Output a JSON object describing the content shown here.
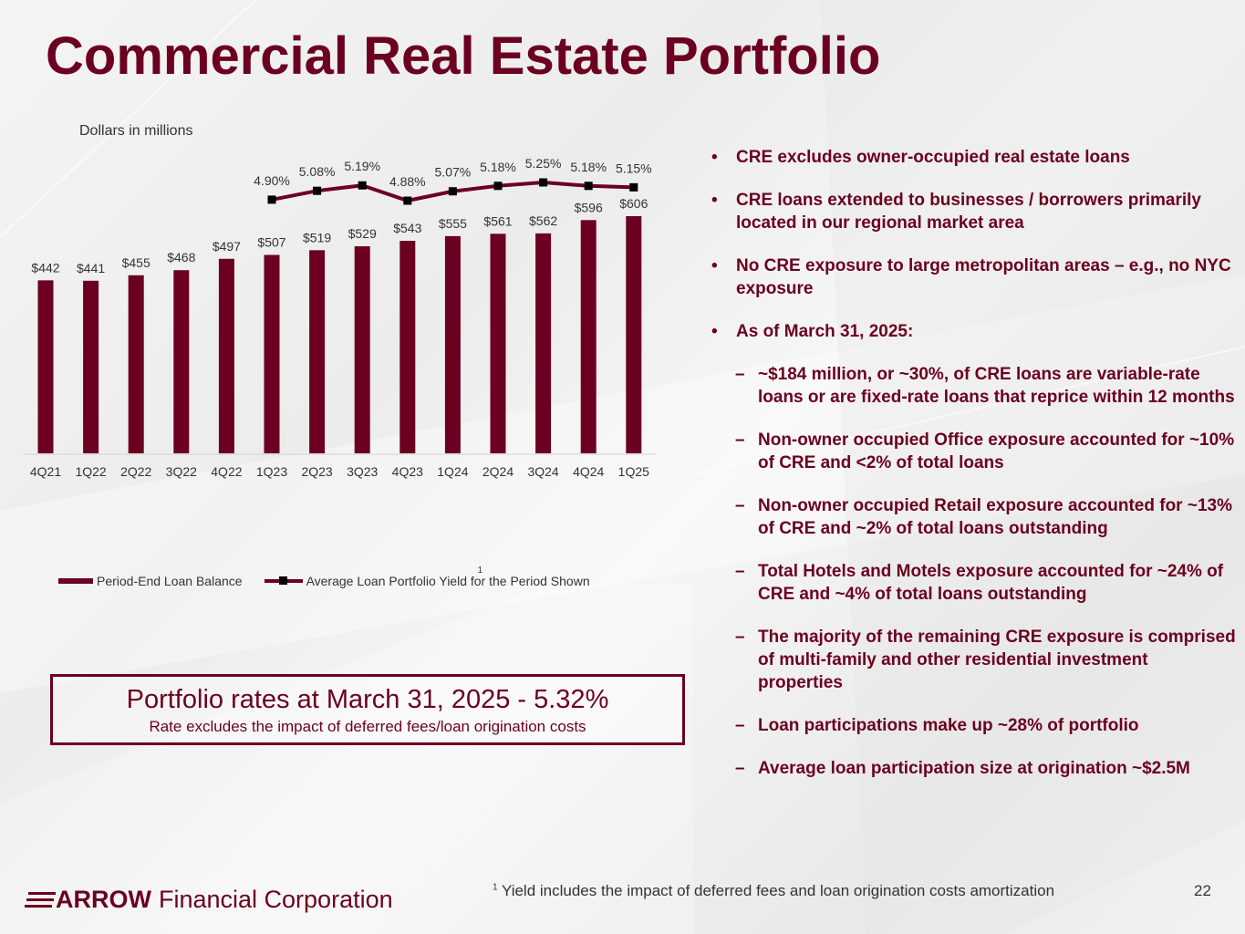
{
  "title": "Commercial Real Estate Portfolio",
  "chart_subtitle": "Dollars in millions",
  "chart_data": {
    "type": "bar",
    "categories": [
      "4Q21",
      "1Q22",
      "2Q22",
      "3Q22",
      "4Q22",
      "1Q23",
      "2Q23",
      "3Q23",
      "4Q23",
      "1Q24",
      "2Q24",
      "3Q24",
      "4Q24",
      "1Q25"
    ],
    "series": [
      {
        "name": "Period-End Loan Balance",
        "type": "bar",
        "values": [
          442,
          441,
          455,
          468,
          497,
          507,
          519,
          529,
          543,
          555,
          561,
          562,
          596,
          606
        ],
        "labels": [
          "$442",
          "$441",
          "$455",
          "$468",
          "$497",
          "$507",
          "$519",
          "$529",
          "$543",
          "$555",
          "$561",
          "$562",
          "$596",
          "$606"
        ],
        "color": "#6b0020"
      },
      {
        "name": "Average Loan Portfolio Yield for the Period Shown",
        "type": "line",
        "values": [
          null,
          null,
          null,
          null,
          null,
          4.9,
          5.08,
          5.19,
          4.88,
          5.07,
          5.18,
          5.25,
          5.18,
          5.15
        ],
        "labels": [
          "",
          "",
          "",
          "",
          "",
          "4.90%",
          "5.08%",
          "5.19%",
          "4.88%",
          "5.07%",
          "5.18%",
          "5.25%",
          "5.18%",
          "5.15%"
        ],
        "color": "#6b0020",
        "marker_color": "#000000"
      }
    ],
    "legend_position": "bottom",
    "legend_superscript": "1",
    "grid": false,
    "xlabel": "",
    "ylabel": ""
  },
  "rate_box": {
    "main": "Portfolio rates at March 31, 2025 - 5.32%",
    "sub": "Rate excludes the impact of deferred fees/loan origination costs"
  },
  "bullets": [
    {
      "level": 1,
      "marker": "•",
      "text": "CRE excludes owner-occupied real estate loans"
    },
    {
      "level": 1,
      "marker": "•",
      "text": "CRE loans extended to businesses / borrowers primarily located in our regional market area"
    },
    {
      "level": 1,
      "marker": "•",
      "text": "No CRE exposure to large metropolitan areas – e.g., no NYC exposure"
    },
    {
      "level": 1,
      "marker": "•",
      "text": "As of March 31, 2025:"
    },
    {
      "level": 2,
      "marker": "–",
      "text": "~$184 million, or ~30%, of CRE loans are variable-rate loans or are fixed-rate loans that reprice within 12 months"
    },
    {
      "level": 2,
      "marker": "–",
      "text": "Non-owner occupied Office exposure accounted for ~10% of CRE and  <2% of total loans"
    },
    {
      "level": 2,
      "marker": "–",
      "text": "Non-owner occupied Retail exposure accounted for ~13% of CRE and  ~2% of total loans outstanding"
    },
    {
      "level": 2,
      "marker": "–",
      "text": "Total Hotels and Motels exposure accounted for ~24% of CRE and ~4% of total loans outstanding"
    },
    {
      "level": 2,
      "marker": "–",
      "text": "The majority of the remaining CRE exposure is comprised of multi-family and other residential investment properties"
    },
    {
      "level": 2,
      "marker": "–",
      "text": "Loan participations make up ~28% of portfolio"
    },
    {
      "level": 2,
      "marker": "–",
      "text": "Average loan participation size at origination ~$2.5M"
    }
  ],
  "footer": {
    "logo_brand": "ARROW",
    "logo_rest": "Financial Corporation",
    "footnote_marker": "1",
    "footnote_text": "Yield includes the impact of deferred fees and loan origination costs amortization",
    "page_number": "22"
  },
  "colors": {
    "brand": "#6b0020",
    "text": "#333333"
  }
}
